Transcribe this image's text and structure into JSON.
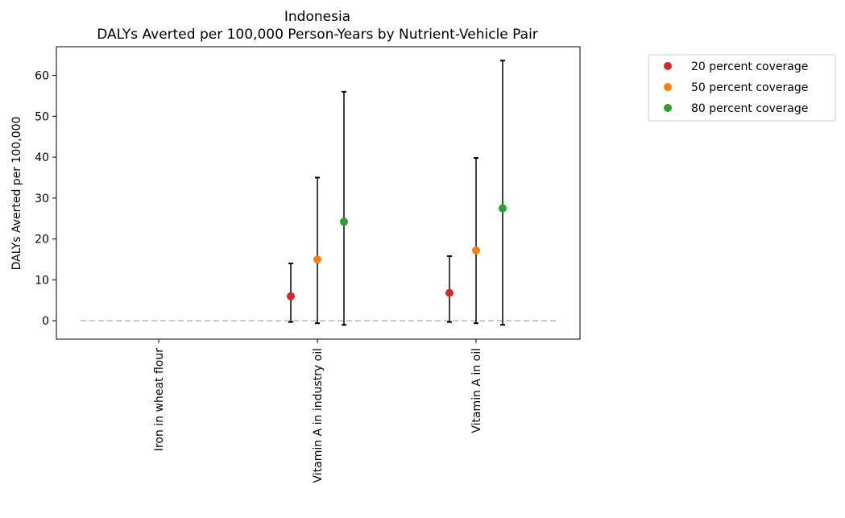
{
  "chart_data": {
    "type": "scatter",
    "title": "Indonesia",
    "subtitle": "DALYs Averted per 100,000 Person-Years by Nutrient-Vehicle Pair",
    "xlabel": "",
    "ylabel": "DALYs Averted per 100,000",
    "categories": [
      "Iron in wheat flour",
      "Vitamin A in industry oil",
      "Vitamin A in oil"
    ],
    "ylim": [
      -4.5,
      67
    ],
    "yticks": [
      "0",
      "10",
      "20",
      "30",
      "40",
      "50",
      "60"
    ],
    "grid": false,
    "legend_position": "outside-top-right",
    "reference_line": {
      "y": 0,
      "style": "dashed",
      "color": "#bbbbbb"
    },
    "series": [
      {
        "name": "20 percent coverage",
        "color": "#d62728",
        "points": [
          {
            "category": "Vitamin A in industry oil",
            "value": 6.0,
            "lower": -0.3,
            "upper": 14.0
          },
          {
            "category": "Vitamin A in oil",
            "value": 6.8,
            "lower": -0.3,
            "upper": 15.8
          }
        ]
      },
      {
        "name": "50 percent coverage",
        "color": "#ff7f0e",
        "points": [
          {
            "category": "Vitamin A in industry oil",
            "value": 15.0,
            "lower": -0.6,
            "upper": 35.0
          },
          {
            "category": "Vitamin A in oil",
            "value": 17.2,
            "lower": -0.6,
            "upper": 39.8
          }
        ]
      },
      {
        "name": "80 percent coverage",
        "color": "#2ca02c",
        "points": [
          {
            "category": "Vitamin A in industry oil",
            "value": 24.2,
            "lower": -1.0,
            "upper": 56.0
          },
          {
            "category": "Vitamin A in oil",
            "value": 27.5,
            "lower": -1.0,
            "upper": 63.6
          }
        ]
      }
    ]
  }
}
